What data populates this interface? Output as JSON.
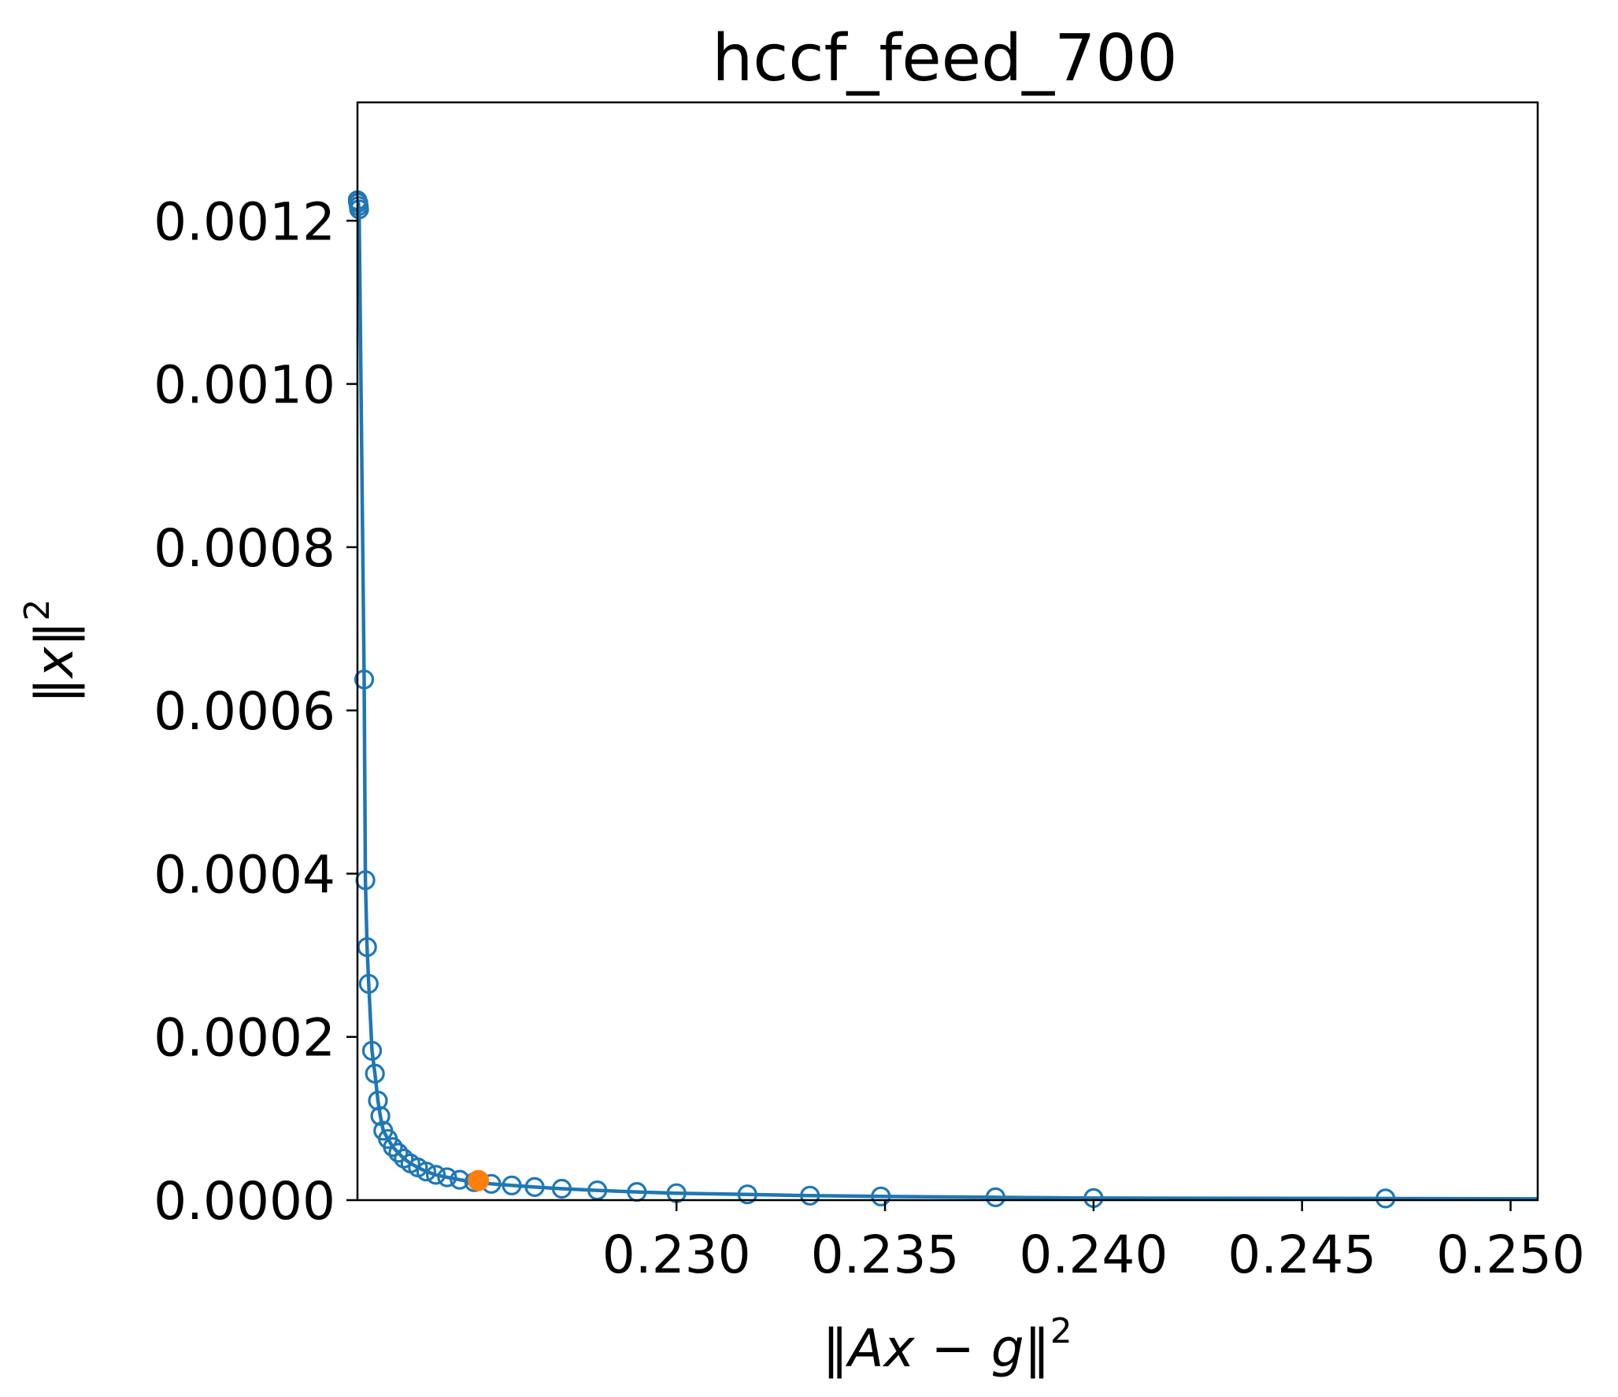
{
  "chart_data": {
    "type": "scatter",
    "title": "hccf_feed_700",
    "xlabel": {
      "bar_l": "‖",
      "expr": "Ax − g",
      "bar_r": "‖",
      "sup": "2"
    },
    "ylabel": {
      "bar_l": "‖",
      "expr": "x",
      "bar_r": "‖",
      "sup": "2"
    },
    "xlim": [
      0.22235,
      0.25065
    ],
    "ylim": [
      0.0,
      0.001345
    ],
    "x_ticks": [
      {
        "value": 0.23,
        "label": "0.230"
      },
      {
        "value": 0.235,
        "label": "0.235"
      },
      {
        "value": 0.24,
        "label": "0.240"
      },
      {
        "value": 0.245,
        "label": "0.245"
      },
      {
        "value": 0.25,
        "label": "0.250"
      }
    ],
    "y_ticks": [
      {
        "value": 0.0,
        "label": "0.0000"
      },
      {
        "value": 0.0002,
        "label": "0.0002"
      },
      {
        "value": 0.0004,
        "label": "0.0004"
      },
      {
        "value": 0.0006,
        "label": "0.0006"
      },
      {
        "value": 0.0008,
        "label": "0.0008"
      },
      {
        "value": 0.001,
        "label": "0.0010"
      },
      {
        "value": 0.0012,
        "label": "0.0012"
      }
    ],
    "grid": false,
    "series": [
      {
        "style": "line+hollow-markers",
        "color": "#1f77b4",
        "points": [
          [
            0.22235,
            0.001225
          ],
          [
            0.22237,
            0.001222
          ],
          [
            0.22238,
            0.001218
          ],
          [
            0.22239,
            0.001214
          ],
          [
            0.22251,
            0.000638
          ],
          [
            0.22254,
            0.000392
          ],
          [
            0.22258,
            0.00031
          ],
          [
            0.22262,
            0.000265
          ],
          [
            0.2227,
            0.000183
          ],
          [
            0.22277,
            0.000155
          ],
          [
            0.22284,
            0.000122
          ],
          [
            0.2229,
            0.000103
          ],
          [
            0.22297,
            8.5e-05
          ],
          [
            0.22308,
            7.5e-05
          ],
          [
            0.2232,
            6.5e-05
          ],
          [
            0.22333,
            5.8e-05
          ],
          [
            0.22346,
            5.1e-05
          ],
          [
            0.22362,
            4.5e-05
          ],
          [
            0.2238,
            4e-05
          ],
          [
            0.224,
            3.5e-05
          ],
          [
            0.22423,
            3.1e-05
          ],
          [
            0.2245,
            2.8e-05
          ],
          [
            0.2248,
            2.5e-05
          ],
          [
            0.22515,
            2.2e-05
          ],
          [
            0.22556,
            2e-05
          ],
          [
            0.22605,
            1.8e-05
          ],
          [
            0.2266,
            1.6e-05
          ],
          [
            0.22725,
            1.4e-05
          ],
          [
            0.2281,
            1.2e-05
          ],
          [
            0.22905,
            1e-05
          ],
          [
            0.23,
            8.5e-06
          ],
          [
            0.2317,
            7e-06
          ],
          [
            0.2332,
            5.5e-06
          ],
          [
            0.2349,
            4.5e-06
          ],
          [
            0.23765,
            3.5e-06
          ],
          [
            0.24,
            2.5e-06
          ],
          [
            0.247,
            2e-06
          ]
        ],
        "line_extends_to": [
          0.25065,
          1.5e-06
        ]
      }
    ],
    "highlight_point": {
      "x": 0.22525,
      "y": 2.4e-05,
      "color": "#ff7f0e"
    }
  }
}
